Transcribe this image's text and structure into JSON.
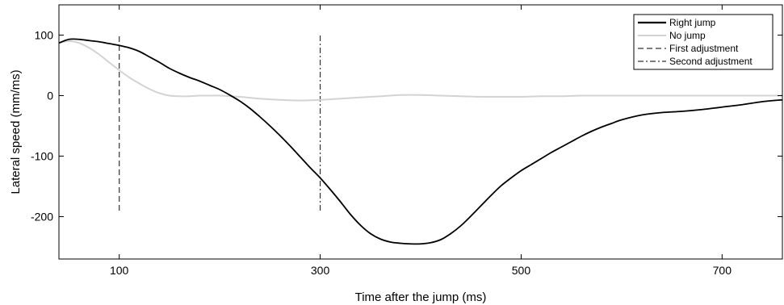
{
  "chart_data": {
    "type": "line",
    "title": "",
    "xlabel": "Time after the jump (ms)",
    "ylabel": "Lateral speed (mm/ms)",
    "xlim": [
      40,
      760
    ],
    "ylim": [
      -270,
      150
    ],
    "xticks": [
      100,
      300,
      500,
      700
    ],
    "yticks": [
      100,
      0,
      -100,
      -200
    ],
    "grid": false,
    "legend_position": "top-right",
    "series": [
      {
        "name": "Right jump",
        "color": "#000000",
        "style": "solid",
        "x": [
          40,
          50,
          60,
          70,
          80,
          90,
          100,
          110,
          120,
          130,
          140,
          150,
          160,
          170,
          180,
          190,
          200,
          210,
          220,
          230,
          240,
          250,
          260,
          270,
          280,
          290,
          300,
          310,
          320,
          330,
          340,
          350,
          360,
          370,
          380,
          390,
          400,
          410,
          420,
          430,
          440,
          450,
          460,
          470,
          480,
          490,
          500,
          510,
          520,
          530,
          540,
          550,
          560,
          570,
          580,
          590,
          600,
          620,
          640,
          660,
          680,
          700,
          720,
          740,
          760
        ],
        "y": [
          87,
          93,
          93,
          91,
          89,
          86,
          83,
          79,
          73,
          64,
          55,
          45,
          37,
          30,
          24,
          17,
          10,
          1,
          -9,
          -21,
          -35,
          -50,
          -66,
          -83,
          -101,
          -119,
          -136,
          -155,
          -175,
          -196,
          -214,
          -228,
          -237,
          -242,
          -244,
          -245,
          -245,
          -243,
          -238,
          -228,
          -215,
          -199,
          -182,
          -165,
          -149,
          -136,
          -124,
          -114,
          -104,
          -94,
          -85,
          -76,
          -67,
          -59,
          -52,
          -46,
          -40,
          -32,
          -28,
          -26,
          -23,
          -19,
          -15,
          -10,
          -7
        ]
      },
      {
        "name": "No jump",
        "color": "#d3d3d3",
        "style": "solid",
        "x": [
          40,
          50,
          60,
          70,
          80,
          90,
          100,
          110,
          120,
          130,
          140,
          150,
          160,
          170,
          180,
          190,
          200,
          220,
          240,
          260,
          280,
          300,
          320,
          340,
          360,
          380,
          400,
          420,
          440,
          460,
          480,
          500,
          520,
          540,
          560,
          580,
          600,
          650,
          700,
          760
        ],
        "y": [
          87,
          90,
          87,
          79,
          68,
          55,
          42,
          30,
          20,
          11,
          4,
          0,
          -1,
          -1,
          0,
          0,
          0,
          -2,
          -5,
          -7,
          -8,
          -7,
          -5,
          -3,
          -1,
          1,
          1,
          0,
          -1,
          -2,
          -2,
          -2,
          -1,
          -1,
          0,
          0,
          0,
          0,
          0,
          0
        ]
      }
    ],
    "annotations": [
      {
        "name": "First adjustment",
        "x": 100,
        "y_from": -190,
        "y_to": 100,
        "style": "dashed",
        "color": "#333333"
      },
      {
        "name": "Second adjustment",
        "x": 300,
        "y_from": -190,
        "y_to": 100,
        "style": "dash-dot",
        "color": "#333333"
      }
    ]
  }
}
